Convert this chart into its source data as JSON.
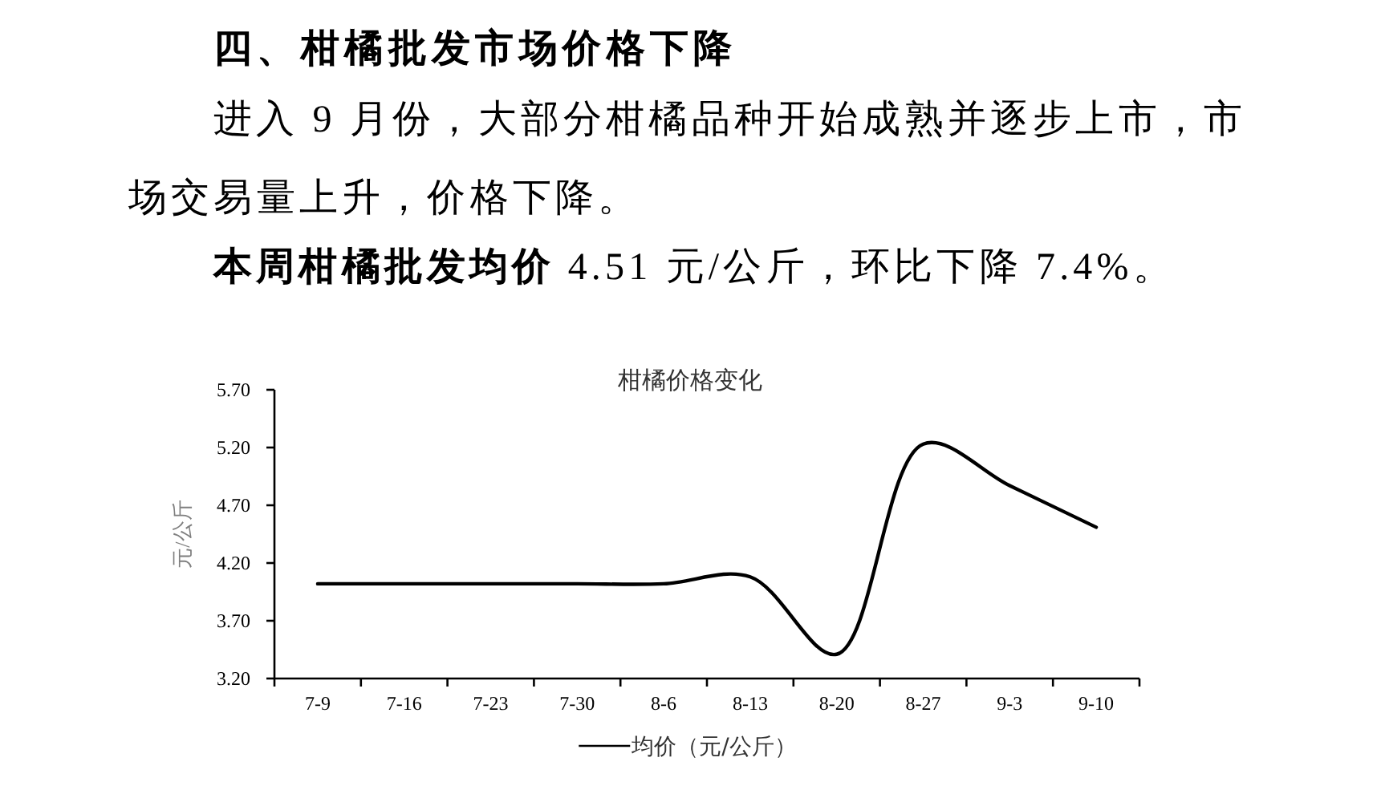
{
  "chart_data": {
    "type": "line",
    "title": "柑橘价格变化",
    "ylabel": "元/公斤",
    "annotations": [
      "四、柑橘批发市场价格下降",
      "进入 9 月份，大部分柑橘品种开始成熟并逐步上市，市场交易量上升，价格下降。",
      "本周柑橘批发均价",
      "4.51 元/公斤，环比下降 7.4%。"
    ],
    "categories": [
      "7-9",
      "7-16",
      "7-23",
      "7-30",
      "8-6",
      "8-13",
      "8-20",
      "8-27",
      "9-3",
      "9-10"
    ],
    "series": [
      {
        "name": "均价（元/公斤）",
        "color": "#000000",
        "values": [
          4.02,
          4.02,
          4.02,
          4.02,
          4.02,
          4.08,
          3.41,
          5.23,
          4.87,
          4.51
        ]
      }
    ],
    "ylim": [
      3.2,
      5.7
    ],
    "yticks": [
      {
        "value": 3.2,
        "label": "3.20"
      },
      {
        "value": 3.7,
        "label": "3.70"
      },
      {
        "value": 4.2,
        "label": "4.20"
      },
      {
        "value": 4.7,
        "label": "4.70"
      },
      {
        "value": 5.2,
        "label": "5.20"
      },
      {
        "value": 5.7,
        "label": "5.70"
      }
    ],
    "legend": "bottom",
    "marker": "none",
    "line_style": "solid"
  }
}
